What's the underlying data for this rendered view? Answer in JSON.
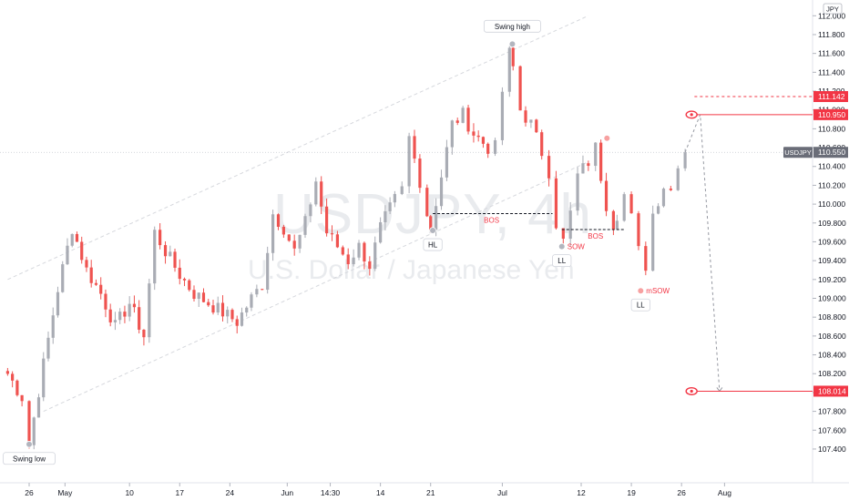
{
  "chart_data": {
    "type": "candlestick",
    "symbol": "USDJPY",
    "watermark_symbol": "USDJPY, 4h",
    "watermark_description": "U.S. Dollar / Japanese Yen",
    "currency": "JPY",
    "colors": {
      "up": "#a9acb4",
      "down": "#ef5350",
      "accent": "#f23645",
      "neutral_label": "#6a6d78",
      "channel": "#d6d8dd"
    },
    "y_axis": {
      "range": [
        107.14,
        112.12
      ],
      "ticks": [
        "107.400",
        "107.600",
        "107.800",
        "108.000",
        "108.200",
        "108.400",
        "108.600",
        "108.800",
        "109.000",
        "109.200",
        "109.400",
        "109.600",
        "109.800",
        "110.000",
        "110.200",
        "110.400",
        "110.600",
        "110.800",
        "111.000",
        "111.200",
        "111.400",
        "111.600",
        "111.800",
        "112.000"
      ],
      "tick_values": [
        107.4,
        107.6,
        107.8,
        108.0,
        108.2,
        108.4,
        108.6,
        108.8,
        109.0,
        109.2,
        109.4,
        109.6,
        109.8,
        110.0,
        110.2,
        110.4,
        110.6,
        110.8,
        111.0,
        111.2,
        111.4,
        111.6,
        111.8,
        112.0
      ]
    },
    "x_axis": {
      "ticks": [
        {
          "label": "26",
          "day": 0
        },
        {
          "label": "May",
          "day": 5
        },
        {
          "label": "10",
          "day": 14
        },
        {
          "label": "17",
          "day": 21
        },
        {
          "label": "24",
          "day": 28
        },
        {
          "label": "Jun",
          "day": 36
        },
        {
          "label": "14:30",
          "day": 42
        },
        {
          "label": "14",
          "day": 49
        },
        {
          "label": "21",
          "day": 56
        },
        {
          "label": "Jul",
          "day": 66
        },
        {
          "label": "12",
          "day": 77
        },
        {
          "label": "19",
          "day": 84
        },
        {
          "label": "26",
          "day": 91
        },
        {
          "label": "Aug",
          "day": 97
        }
      ]
    },
    "price_tags": [
      {
        "label": "111.142",
        "value": 111.142,
        "kind": "dashed"
      },
      {
        "label": "110.950",
        "value": 110.95,
        "kind": "target"
      },
      {
        "label": "110.550",
        "value": 110.55,
        "kind": "last"
      },
      {
        "label": "108.014",
        "value": 108.014,
        "kind": "target"
      }
    ],
    "last_price_symbol": "USDJPY",
    "anchor_points": [
      {
        "day": -3,
        "price": 108.2
      },
      {
        "day": -1,
        "price": 107.95
      },
      {
        "day": 0,
        "price": 107.45
      },
      {
        "day": 2,
        "price": 108.3
      },
      {
        "day": 4,
        "price": 109.1
      },
      {
        "day": 6,
        "price": 109.75
      },
      {
        "day": 8,
        "price": 109.3
      },
      {
        "day": 10,
        "price": 109.05
      },
      {
        "day": 12,
        "price": 108.7
      },
      {
        "day": 14,
        "price": 108.95
      },
      {
        "day": 16,
        "price": 108.6
      },
      {
        "day": 17.5,
        "price": 109.7
      },
      {
        "day": 19,
        "price": 109.5
      },
      {
        "day": 21,
        "price": 109.25
      },
      {
        "day": 23,
        "price": 109.05
      },
      {
        "day": 25,
        "price": 108.95
      },
      {
        "day": 27,
        "price": 108.85
      },
      {
        "day": 29,
        "price": 108.75
      },
      {
        "day": 31,
        "price": 109.0
      },
      {
        "day": 32.5,
        "price": 109.15
      },
      {
        "day": 34,
        "price": 109.9
      },
      {
        "day": 35.5,
        "price": 109.75
      },
      {
        "day": 37,
        "price": 109.5
      },
      {
        "day": 38.5,
        "price": 109.8
      },
      {
        "day": 40,
        "price": 110.25
      },
      {
        "day": 41.5,
        "price": 109.7
      },
      {
        "day": 43,
        "price": 109.55
      },
      {
        "day": 44.5,
        "price": 109.4
      },
      {
        "day": 46,
        "price": 109.55
      },
      {
        "day": 47.5,
        "price": 109.35
      },
      {
        "day": 49,
        "price": 109.75
      },
      {
        "day": 51,
        "price": 110.05
      },
      {
        "day": 52,
        "price": 110.15
      },
      {
        "day": 53,
        "price": 110.7
      },
      {
        "day": 54.5,
        "price": 110.25
      },
      {
        "day": 55.5,
        "price": 109.9
      },
      {
        "day": 56,
        "price": 109.75
      },
      {
        "day": 57.5,
        "price": 110.3
      },
      {
        "day": 59,
        "price": 110.85
      },
      {
        "day": 60.5,
        "price": 110.95
      },
      {
        "day": 62,
        "price": 110.75
      },
      {
        "day": 64,
        "price": 110.6
      },
      {
        "day": 65,
        "price": 110.6
      },
      {
        "day": 66,
        "price": 111.2
      },
      {
        "day": 67,
        "price": 111.6
      },
      {
        "day": 67.5,
        "price": 111.45
      },
      {
        "day": 68.5,
        "price": 111.0
      },
      {
        "day": 70,
        "price": 110.85
      },
      {
        "day": 71.5,
        "price": 110.55
      },
      {
        "day": 72.5,
        "price": 110.35
      },
      {
        "day": 73.5,
        "price": 109.8
      },
      {
        "day": 74.5,
        "price": 109.6
      },
      {
        "day": 75.5,
        "price": 109.9
      },
      {
        "day": 76.5,
        "price": 110.3
      },
      {
        "day": 78,
        "price": 110.45
      },
      {
        "day": 79,
        "price": 110.6
      },
      {
        "day": 80.5,
        "price": 110.0
      },
      {
        "day": 81.5,
        "price": 109.8
      },
      {
        "day": 82,
        "price": 109.9
      },
      {
        "day": 83,
        "price": 110.1
      },
      {
        "day": 84,
        "price": 109.85
      },
      {
        "day": 85,
        "price": 109.5
      },
      {
        "day": 86,
        "price": 109.35
      },
      {
        "day": 87,
        "price": 109.9
      },
      {
        "day": 88.5,
        "price": 110.2
      },
      {
        "day": 89.5,
        "price": 110.15
      },
      {
        "day": 90.5,
        "price": 110.45
      },
      {
        "day": 91.5,
        "price": 110.55
      }
    ],
    "annotations": [
      {
        "text": "Swing low",
        "day": 0,
        "price": 107.45,
        "style": "boxed",
        "placement": "below"
      },
      {
        "text": "Swing high",
        "day": 67.4,
        "price": 111.7,
        "style": "boxed",
        "placement": "above"
      },
      {
        "text": "HL",
        "day": 56.3,
        "price": 109.72,
        "style": "boxed",
        "placement": "below"
      },
      {
        "text": "LL",
        "day": 74.3,
        "price": 109.55,
        "style": "boxed",
        "placement": "below"
      },
      {
        "text": "LL",
        "day": 85.3,
        "price": 109.08,
        "style": "boxed",
        "placement": "below"
      },
      {
        "text": "BOS",
        "day": 64.5,
        "price": 109.9,
        "style": "red",
        "placement": "below"
      },
      {
        "text": "BOS",
        "day": 79.0,
        "price": 109.73,
        "style": "red",
        "placement": "below"
      },
      {
        "text": "SOW",
        "day": 74.3,
        "price": 109.55,
        "style": "red",
        "placement": "right"
      },
      {
        "text": "mSOW",
        "day": 85.3,
        "price": 109.08,
        "style": "red",
        "placement": "right"
      }
    ],
    "markers": [
      {
        "day": 0,
        "price": 107.45,
        "color": "grey"
      },
      {
        "day": 67.4,
        "price": 111.7,
        "color": "grey"
      },
      {
        "day": 56.3,
        "price": 109.72,
        "color": "grey"
      },
      {
        "day": 74.3,
        "price": 109.55,
        "color": "grey"
      },
      {
        "day": 85.3,
        "price": 109.08,
        "color": "red"
      },
      {
        "day": 80.6,
        "price": 110.7,
        "color": "red"
      }
    ],
    "bos_lines": [
      {
        "from_day": 56.3,
        "to_day": 73.0,
        "price": 109.9
      },
      {
        "from_day": 74.3,
        "to_day": 83.0,
        "price": 109.73
      }
    ],
    "channel_lines": [
      {
        "from": {
          "day": -3,
          "price": 109.2
        },
        "to": {
          "day": 78,
          "price": 112.0
        }
      },
      {
        "from": {
          "day": 2,
          "price": 107.8
        },
        "to": {
          "day": 78,
          "price": 110.45
        }
      }
    ],
    "projection_path": [
      {
        "day": 91.5,
        "price": 110.55
      },
      {
        "day": 93.6,
        "price": 110.95
      },
      {
        "day": 96.3,
        "price": 108.014
      }
    ],
    "target_levels": [
      {
        "price": 110.95,
        "from_day": 92.4
      },
      {
        "price": 108.014,
        "from_day": 92.4
      }
    ],
    "dashed_level": {
      "price": 111.142,
      "from_day": 92.8
    }
  }
}
